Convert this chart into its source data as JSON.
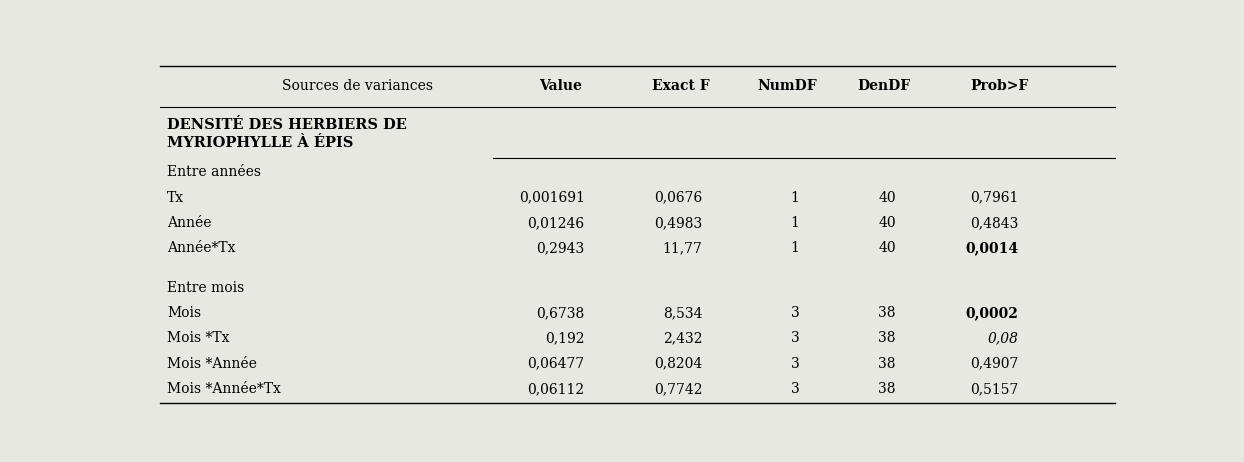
{
  "columns": [
    "Sources de variances",
    "Value",
    "Exact F",
    "NumDF",
    "DenDF",
    "Prob>F"
  ],
  "header_fontsize": 10,
  "body_fontsize": 10,
  "bg_color": "#e8e8e3",
  "rows": [
    {
      "label": "DENSITÉ DES HERBIERS DE\nMYRIOPHYLLE À ÉPIS",
      "values": [
        "",
        "",
        "",
        "",
        ""
      ],
      "bold": [
        true
      ],
      "italic": [
        false
      ],
      "type": "section_header"
    },
    {
      "label": "Entre années",
      "values": [
        "",
        "",
        "",
        "",
        ""
      ],
      "bold": [
        false
      ],
      "italic": [
        false
      ],
      "type": "subsection"
    },
    {
      "label": "Tx",
      "values": [
        "0,001691",
        "0,0676",
        "1",
        "40",
        "0,7961"
      ],
      "bold": [
        false,
        false,
        false,
        false,
        false
      ],
      "italic": [
        false,
        false,
        false,
        false,
        false
      ],
      "type": "data"
    },
    {
      "label": "Année",
      "values": [
        "0,01246",
        "0,4983",
        "1",
        "40",
        "0,4843"
      ],
      "bold": [
        false,
        false,
        false,
        false,
        false
      ],
      "italic": [
        false,
        false,
        false,
        false,
        false
      ],
      "type": "data"
    },
    {
      "label": "Année*Tx",
      "values": [
        "0,2943",
        "11,77",
        "1",
        "40",
        "0,0014"
      ],
      "bold": [
        false,
        false,
        false,
        false,
        true
      ],
      "italic": [
        false,
        false,
        false,
        false,
        false
      ],
      "type": "data"
    },
    {
      "label": "",
      "values": [
        "",
        "",
        "",
        "",
        ""
      ],
      "type": "spacer"
    },
    {
      "label": "Entre mois",
      "values": [
        "",
        "",
        "",
        "",
        ""
      ],
      "bold": [
        false
      ],
      "italic": [
        false
      ],
      "type": "subsection"
    },
    {
      "label": "Mois",
      "values": [
        "0,6738",
        "8,534",
        "3",
        "38",
        "0,0002"
      ],
      "bold": [
        false,
        false,
        false,
        false,
        true
      ],
      "italic": [
        false,
        false,
        false,
        false,
        false
      ],
      "type": "data"
    },
    {
      "label": "Mois *Tx",
      "values": [
        "0,192",
        "2,432",
        "3",
        "38",
        "0,08"
      ],
      "bold": [
        false,
        false,
        false,
        false,
        false
      ],
      "italic": [
        false,
        false,
        false,
        false,
        true
      ],
      "type": "data"
    },
    {
      "label": "Mois *Année",
      "values": [
        "0,06477",
        "0,8204",
        "3",
        "38",
        "0,4907"
      ],
      "bold": [
        false,
        false,
        false,
        false,
        false
      ],
      "italic": [
        false,
        false,
        false,
        false,
        false
      ],
      "type": "data"
    },
    {
      "label": "Mois *Année*Tx",
      "values": [
        "0,06112",
        "0,7742",
        "3",
        "38",
        "0,5157"
      ],
      "bold": [
        false,
        false,
        false,
        false,
        false
      ],
      "italic": [
        false,
        false,
        false,
        false,
        false
      ],
      "type": "data"
    }
  ]
}
